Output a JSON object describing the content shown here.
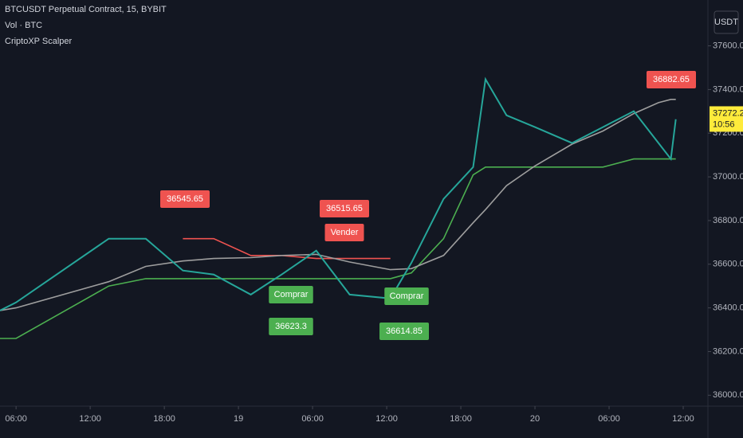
{
  "chart_data": {
    "type": "line",
    "title": "BTCUSDT Perpetual Contract, 15, BYBIT",
    "indicators": [
      "Vol · BTC",
      "CriptoXP Scalper"
    ],
    "currency_button": "USDT",
    "x": [
      4.7,
      6,
      13.5,
      16.5,
      19.5,
      22,
      25,
      27.5,
      30.3,
      33,
      36.3,
      38,
      40.6,
      43,
      44,
      45.7,
      48,
      51,
      53.5,
      56,
      58,
      59,
      59.4
    ],
    "xlim": [
      4.7,
      62
    ],
    "xticks": [
      {
        "value": 6,
        "label": "06:00"
      },
      {
        "value": 12,
        "label": "12:00"
      },
      {
        "value": 18,
        "label": "18:00"
      },
      {
        "value": 24,
        "label": "19"
      },
      {
        "value": 30,
        "label": "06:00"
      },
      {
        "value": 36,
        "label": "12:00"
      },
      {
        "value": 42,
        "label": "18:00"
      },
      {
        "value": 48,
        "label": "20"
      },
      {
        "value": 54,
        "label": "06:00"
      },
      {
        "value": 60,
        "label": "12:00"
      }
    ],
    "ylim": [
      35950,
      37810
    ],
    "yticks": [
      {
        "value": 36000,
        "label": "36000.0"
      },
      {
        "value": 36200,
        "label": "36200.0"
      },
      {
        "value": 36400,
        "label": "36400.0"
      },
      {
        "value": 36600,
        "label": "36600.0"
      },
      {
        "value": 36800,
        "label": "36800.0"
      },
      {
        "value": 37000,
        "label": "37000.0"
      },
      {
        "value": 37200,
        "label": "37200.0"
      },
      {
        "value": 37400,
        "label": "37400.0"
      },
      {
        "value": 37600,
        "label": "37600.0"
      }
    ],
    "series": [
      {
        "color": "#ef5350",
        "values": [
          null,
          null,
          null,
          null,
          36717,
          36717,
          36640,
          36640,
          36626,
          36626,
          36626,
          null,
          null,
          null,
          null,
          null,
          null,
          null,
          null,
          null,
          null,
          null,
          null
        ]
      },
      {
        "color": "#4caf50",
        "values": [
          36260,
          36260,
          36500,
          36534,
          36534,
          36534,
          36534,
          36534,
          36534,
          36534,
          36534,
          36560,
          36717,
          37009,
          37045,
          37045,
          37045,
          37045,
          37045,
          37082,
          37082,
          37082,
          37082
        ]
      },
      {
        "color": "#9e9e9e",
        "values": [
          36388,
          36400,
          36520,
          36590,
          36615,
          36626,
          36630,
          36640,
          36645,
          36610,
          36575,
          36580,
          36640,
          36790,
          36850,
          36960,
          37050,
          37150,
          37210,
          37290,
          37340,
          37355,
          37355
        ]
      },
      {
        "color": "#26a69a",
        "values": [
          36388,
          36425,
          36717,
          36717,
          36571,
          36553,
          36461,
          36553,
          36662,
          36461,
          36443,
          36607,
          36899,
          37045,
          37447,
          37282,
          37228,
          37155,
          37228,
          37301,
          37155,
          37082,
          37264
        ]
      }
    ],
    "annotations": [
      {
        "text": "36545.65",
        "color": "#ef5350"
      },
      {
        "text": "36515.65",
        "color": "#ef5350"
      },
      {
        "text": "Vender",
        "color": "#ef5350"
      },
      {
        "text": "Comprar",
        "color": "#4caf50"
      },
      {
        "text": "36623.3",
        "color": "#4caf50"
      },
      {
        "text": "Comprar",
        "color": "#4caf50"
      },
      {
        "text": "36614.85",
        "color": "#4caf50"
      },
      {
        "text": "36882.65",
        "color": "#ef5350"
      }
    ],
    "last_price": 37272.2,
    "countdown": "10:56",
    "last_price_color": "#ffeb3b"
  }
}
